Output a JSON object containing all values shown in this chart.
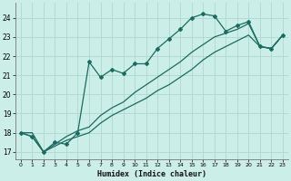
{
  "xlabel": "Humidex (Indice chaleur)",
  "bg_color": "#cceee8",
  "grid_color": "#b0d8d0",
  "line_color": "#1a6b60",
  "x_values": [
    0,
    1,
    2,
    3,
    4,
    5,
    6,
    7,
    8,
    9,
    10,
    11,
    12,
    13,
    14,
    15,
    16,
    17,
    18,
    19,
    20,
    21,
    22,
    23
  ],
  "line1_y": [
    18.0,
    17.8,
    17.0,
    17.5,
    17.4,
    18.0,
    21.7,
    20.9,
    21.3,
    21.1,
    21.6,
    21.6,
    22.4,
    22.9,
    23.4,
    24.0,
    24.2,
    24.1,
    23.3,
    23.6,
    23.8,
    22.5,
    22.4,
    23.1
  ],
  "line2_y": [
    18.0,
    18.0,
    17.0,
    17.4,
    17.8,
    18.1,
    18.3,
    18.9,
    19.3,
    19.6,
    20.1,
    20.5,
    20.9,
    21.3,
    21.7,
    22.2,
    22.6,
    23.0,
    23.2,
    23.4,
    23.7,
    22.5,
    22.4,
    23.1
  ],
  "line3_y": [
    18.0,
    17.8,
    17.0,
    17.3,
    17.6,
    17.8,
    18.0,
    18.5,
    18.9,
    19.2,
    19.5,
    19.8,
    20.2,
    20.5,
    20.9,
    21.3,
    21.8,
    22.2,
    22.5,
    22.8,
    23.1,
    22.5,
    22.4,
    23.1
  ],
  "ylim": [
    16.6,
    24.8
  ],
  "xlim": [
    -0.5,
    23.5
  ],
  "yticks": [
    17,
    18,
    19,
    20,
    21,
    22,
    23,
    24
  ],
  "xticks": [
    0,
    1,
    2,
    3,
    4,
    5,
    6,
    7,
    8,
    9,
    10,
    11,
    12,
    13,
    14,
    15,
    16,
    17,
    18,
    19,
    20,
    21,
    22,
    23
  ]
}
